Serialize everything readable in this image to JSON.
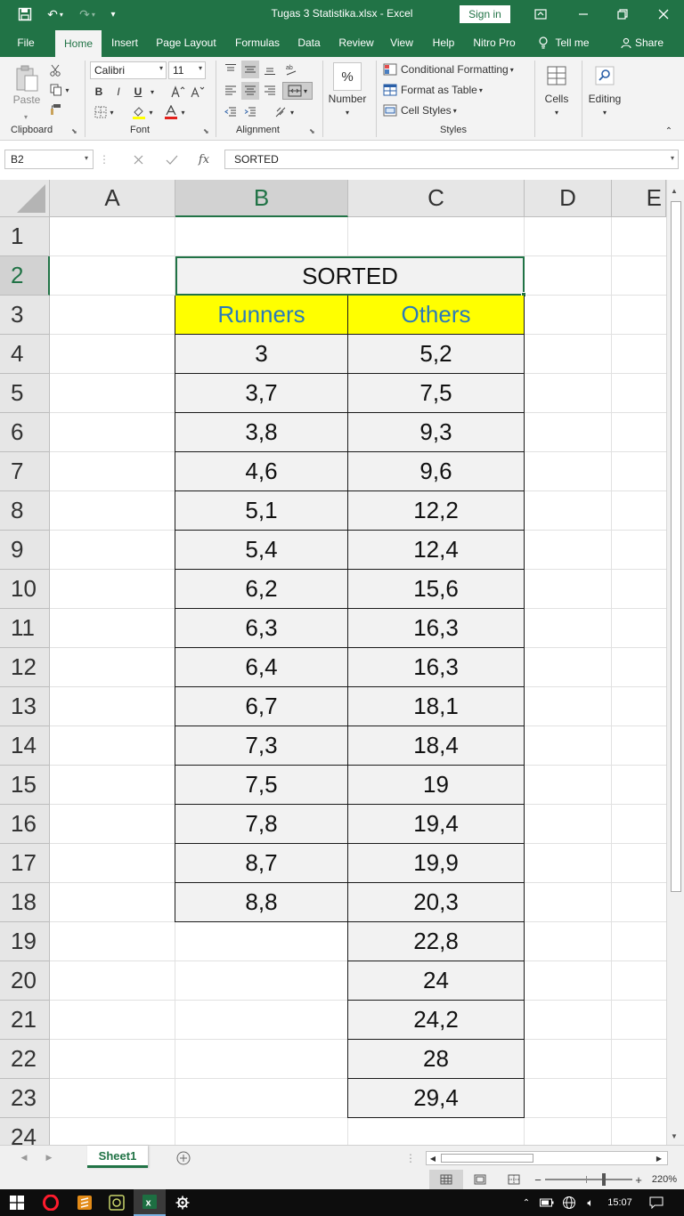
{
  "titlebar": {
    "document_title": "Tugas 3 Statistika.xlsx  -  Excel",
    "sign_in": "Sign in",
    "icons": [
      "save-icon",
      "undo-icon",
      "redo-icon",
      "customize-qat-icon",
      "ribbon-display-icon",
      "minimize-icon",
      "restore-icon",
      "close-icon"
    ]
  },
  "tabs": [
    "File",
    "Home",
    "Insert",
    "Page Layout",
    "Formulas",
    "Data",
    "Review",
    "View",
    "Help",
    "Nitro Pro"
  ],
  "tell_me": "Tell me",
  "share": "Share",
  "ribbon": {
    "clipboard": {
      "label": "Clipboard",
      "paste": "Paste"
    },
    "font": {
      "label": "Font",
      "name": "Calibri",
      "size": "11",
      "bold": "B",
      "italic": "I",
      "underline": "U"
    },
    "alignment": {
      "label": "Alignment"
    },
    "number": {
      "label": "Number",
      "symbol": "%"
    },
    "styles": {
      "label": "Styles",
      "conditional": "Conditional Formatting",
      "format_table": "Format as Table",
      "cell_styles": "Cell Styles"
    },
    "cells": {
      "label": "Cells"
    },
    "editing": {
      "label": "Editing"
    }
  },
  "formula_bar": {
    "name_box": "B2",
    "fx": "fx",
    "value": "SORTED"
  },
  "columns": [
    "A",
    "B",
    "C",
    "D",
    "E"
  ],
  "selected_column": "B",
  "rows": [
    "1",
    "2",
    "3",
    "4",
    "5",
    "6",
    "7",
    "8",
    "9",
    "10",
    "11",
    "12",
    "13",
    "14",
    "15",
    "16",
    "17",
    "18",
    "19",
    "20",
    "21",
    "22",
    "23",
    "24"
  ],
  "selected_row": "2",
  "table": {
    "title": "SORTED",
    "headers": [
      "Runners",
      "Others"
    ],
    "runners": [
      "3",
      "3,7",
      "3,8",
      "4,6",
      "5,1",
      "5,4",
      "6,2",
      "6,3",
      "6,4",
      "6,7",
      "7,3",
      "7,5",
      "7,8",
      "8,7",
      "8,8"
    ],
    "others": [
      "5,2",
      "7,5",
      "9,3",
      "9,6",
      "12,2",
      "12,4",
      "15,6",
      "16,3",
      "16,3",
      "18,1",
      "18,4",
      "19",
      "19,4",
      "19,9",
      "20,3",
      "22,8",
      "24",
      "24,2",
      "28",
      "29,4"
    ]
  },
  "colors": {
    "accent": "#217346",
    "header_fill": "#ffff00",
    "header_text": "#2b7bb9",
    "cell_fill": "#f2f2f2"
  },
  "sheet_tab": "Sheet1",
  "status": {
    "zoom": "220%"
  },
  "taskbar": {
    "time": "15:07"
  }
}
